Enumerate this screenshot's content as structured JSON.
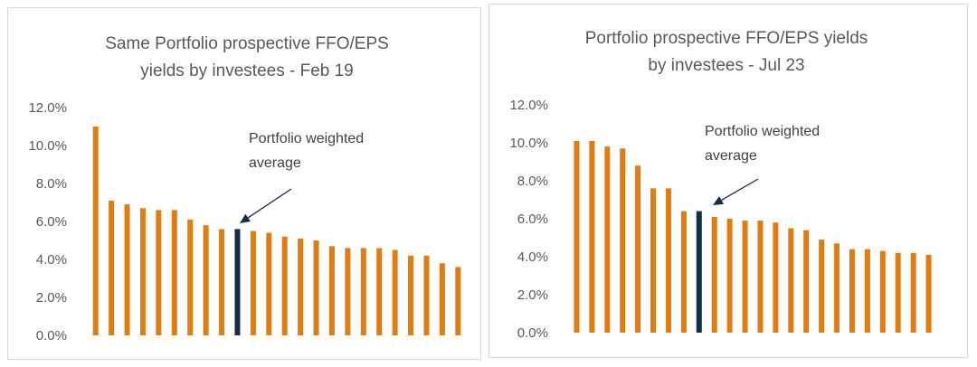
{
  "chart_data": [
    {
      "type": "bar",
      "title_lines": [
        "Same Portfolio prospective FFO/EPS",
        "yields by investees - Feb 19"
      ],
      "ylim": [
        0,
        12
      ],
      "yticks": [
        "0.0%",
        "2.0%",
        "4.0%",
        "6.0%",
        "8.0%",
        "10.0%",
        "12.0%"
      ],
      "values": [
        11.0,
        7.1,
        6.9,
        6.7,
        6.6,
        6.6,
        6.1,
        5.8,
        5.6,
        5.6,
        5.5,
        5.4,
        5.2,
        5.1,
        5.0,
        4.7,
        4.6,
        4.6,
        4.6,
        4.5,
        4.2,
        4.2,
        3.8,
        3.6
      ],
      "highlight_index": 9,
      "annotation_lines": [
        "Portfolio weighted",
        "average"
      ],
      "colors": {
        "bar": "#e07c12",
        "highlight": "#152b47",
        "text": "#595959"
      }
    },
    {
      "type": "bar",
      "title_lines": [
        "Portfolio prospective FFO/EPS yields",
        "by investees - Jul 23"
      ],
      "ylim": [
        0,
        12
      ],
      "yticks": [
        "0.0%",
        "2.0%",
        "4.0%",
        "6.0%",
        "8.0%",
        "10.0%",
        "12.0%"
      ],
      "values": [
        10.1,
        10.1,
        9.8,
        9.7,
        8.8,
        7.6,
        7.6,
        6.4,
        6.4,
        6.1,
        6.0,
        5.9,
        5.9,
        5.8,
        5.5,
        5.4,
        4.9,
        4.7,
        4.4,
        4.4,
        4.3,
        4.2,
        4.2,
        4.1
      ],
      "highlight_index": 8,
      "annotation_lines": [
        "Portfolio weighted",
        "average"
      ],
      "colors": {
        "bar": "#e07c12",
        "highlight": "#152b47",
        "text": "#595959"
      }
    }
  ]
}
